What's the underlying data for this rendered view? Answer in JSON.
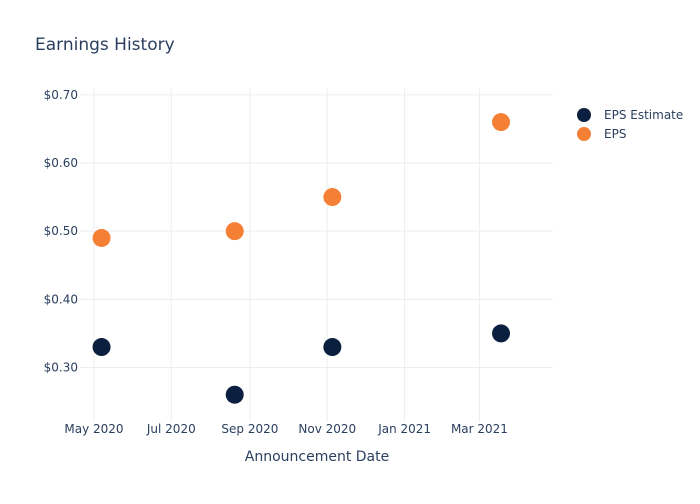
{
  "chart_data": {
    "type": "scatter",
    "title": "Earnings History",
    "xlabel": "Announcement Date",
    "ylabel": "",
    "x_axis": {
      "kind": "date",
      "range": [
        "2020-04-20",
        "2021-04-28"
      ],
      "ticks": [
        {
          "date": "2020-05-01",
          "label": "May 2020"
        },
        {
          "date": "2020-07-01",
          "label": "Jul 2020"
        },
        {
          "date": "2020-09-01",
          "label": "Sep 2020"
        },
        {
          "date": "2020-11-01",
          "label": "Nov 2020"
        },
        {
          "date": "2021-01-01",
          "label": "Jan 2021"
        },
        {
          "date": "2021-03-01",
          "label": "Mar 2021"
        }
      ]
    },
    "y_axis": {
      "range": [
        0.22,
        0.71
      ],
      "ticks": [
        {
          "value": 0.3,
          "label": "$0.30"
        },
        {
          "value": 0.4,
          "label": "$0.40"
        },
        {
          "value": 0.5,
          "label": "$0.50"
        },
        {
          "value": 0.6,
          "label": "$0.60"
        },
        {
          "value": 0.7,
          "label": "$0.70"
        }
      ]
    },
    "grid": true,
    "legend_position": "top-right",
    "series": [
      {
        "name": "EPS Estimate",
        "color": "#0b1f3f",
        "points": [
          {
            "x": "2020-05-07",
            "y": 0.33
          },
          {
            "x": "2020-08-20",
            "y": 0.26
          },
          {
            "x": "2020-11-05",
            "y": 0.33
          },
          {
            "x": "2021-03-18",
            "y": 0.35
          }
        ]
      },
      {
        "name": "EPS",
        "color": "#f47f35",
        "points": [
          {
            "x": "2020-05-07",
            "y": 0.49
          },
          {
            "x": "2020-08-20",
            "y": 0.5
          },
          {
            "x": "2020-11-05",
            "y": 0.55
          },
          {
            "x": "2021-03-18",
            "y": 0.66
          }
        ]
      }
    ]
  }
}
